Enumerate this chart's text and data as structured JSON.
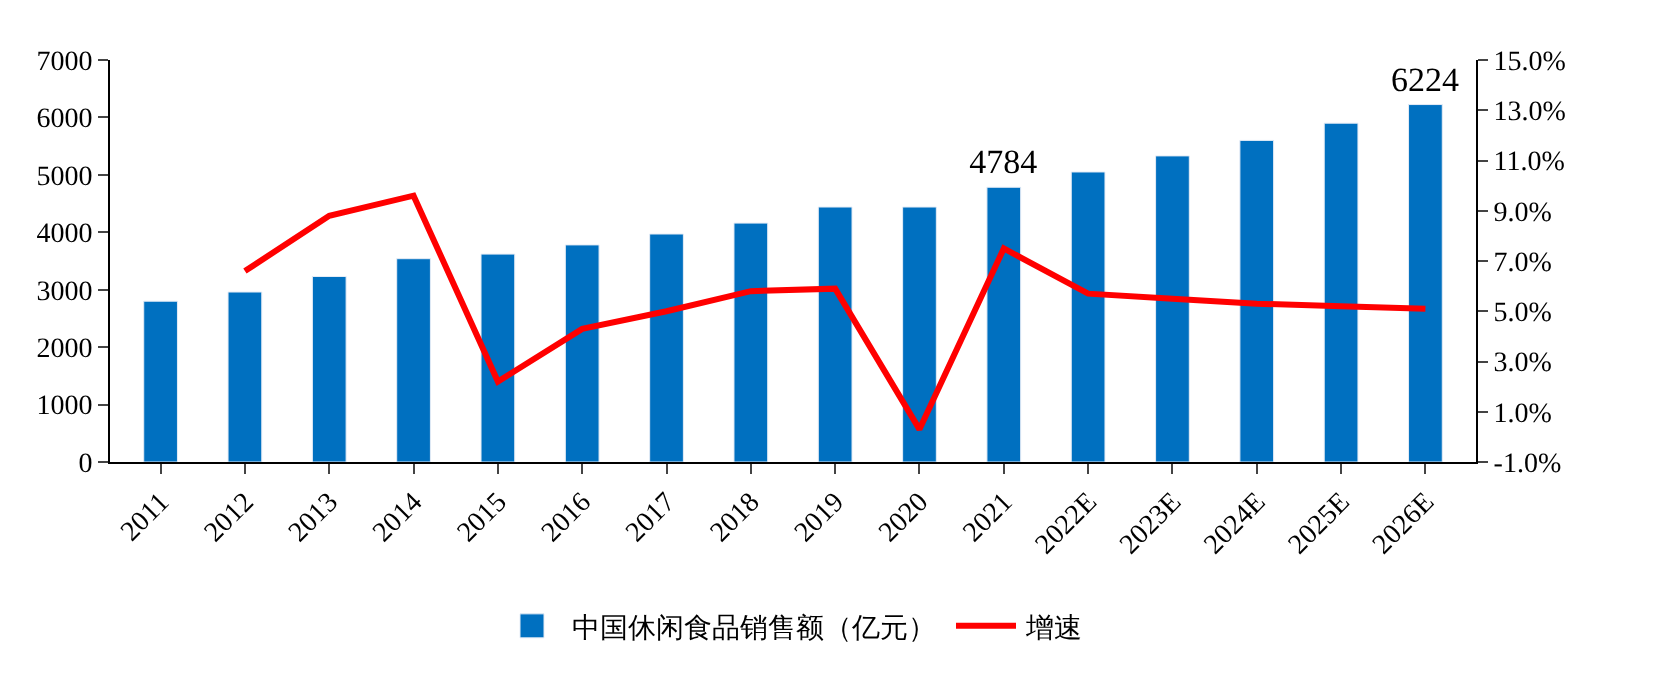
{
  "chart_data": {
    "type": "bar",
    "categories": [
      "2011",
      "2012",
      "2013",
      "2014",
      "2015",
      "2016",
      "2017",
      "2018",
      "2019",
      "2020",
      "2021",
      "2022E",
      "2023E",
      "2024E",
      "2025E",
      "2026E"
    ],
    "series": [
      {
        "name": "中国休闲食品销售额（亿元）",
        "color": "#0070c0",
        "values": [
          2800,
          2960,
          3230,
          3540,
          3620,
          3780,
          3970,
          4160,
          4440,
          4440,
          4784,
          5050,
          5330,
          5600,
          5900,
          6224
        ],
        "value_labels": [
          null,
          null,
          null,
          null,
          null,
          null,
          null,
          null,
          null,
          null,
          "4784",
          null,
          null,
          null,
          null,
          "6224"
        ]
      },
      {
        "name": "增速",
        "type": "line",
        "axis": "y2",
        "color": "#ff0000",
        "values": [
          null,
          6.6,
          8.8,
          9.6,
          2.2,
          4.3,
          5.0,
          5.8,
          5.9,
          0.3,
          7.5,
          5.7,
          5.5,
          5.3,
          5.2,
          5.1
        ]
      }
    ],
    "ylim": [
      0,
      7000
    ],
    "yticks": [
      0,
      1000,
      2000,
      3000,
      4000,
      5000,
      6000,
      7000
    ],
    "y2lim": [
      -1,
      15
    ],
    "y2ticks": [
      {
        "value": -1,
        "label": "-1.0%"
      },
      {
        "value": 1,
        "label": "1.0%"
      },
      {
        "value": 3,
        "label": "3.0%"
      },
      {
        "value": 5,
        "label": "5.0%"
      },
      {
        "value": 7,
        "label": "7.0%"
      },
      {
        "value": 9,
        "label": "9.0%"
      },
      {
        "value": 11,
        "label": "11.0%"
      },
      {
        "value": 13,
        "label": "13.0%"
      },
      {
        "value": 15,
        "label": "15.0%"
      }
    ],
    "legend": "bottom",
    "marker": "none",
    "line_style": "solid"
  }
}
